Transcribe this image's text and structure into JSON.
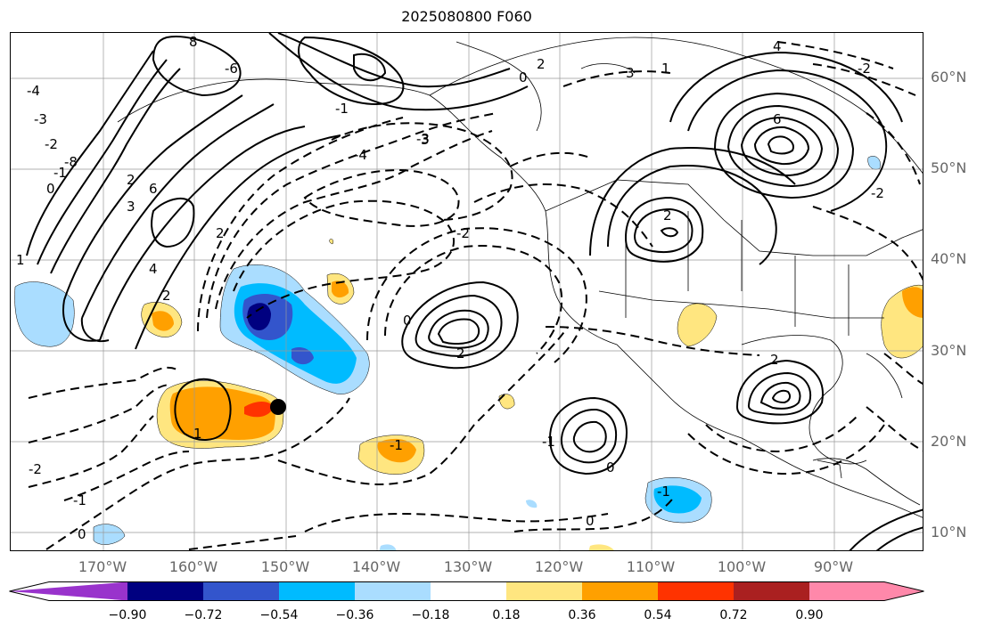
{
  "title": "2025080800 F060",
  "lat_labels": [
    "60°N",
    "50°N",
    "40°N",
    "30°N",
    "20°N",
    "10°N"
  ],
  "lon_labels": [
    "170°W",
    "160°W",
    "150°W",
    "140°W",
    "130°W",
    "120°W",
    "110°W",
    "100°W",
    "90°W"
  ],
  "colorbar": {
    "ticks": [
      "−0.90",
      "−0.72",
      "−0.54",
      "−0.36",
      "−0.18",
      "0.18",
      "0.36",
      "0.54",
      "0.72",
      "0.90"
    ],
    "colors": [
      "#9933cc",
      "#000080",
      "#3355cc",
      "#00bbff",
      "#aaddff",
      "#ffffff",
      "#ffe680",
      "#ffa000",
      "#ff3300",
      "#aa2020",
      "#ff88aa"
    ]
  },
  "contour_labels": [
    "-4",
    "-3",
    "-2",
    "-1",
    "0",
    "1",
    "2",
    "3",
    "4",
    "6",
    "8",
    "-8",
    "-6",
    "2",
    "-2",
    "-1",
    "0",
    "1",
    "2",
    "3",
    "-4",
    "-3",
    "-2",
    "-1",
    "0",
    "1",
    "2",
    "3",
    "4",
    "6",
    "-1",
    "-2",
    "0",
    "-1",
    "0",
    "2",
    "2",
    "-2",
    "0",
    "-1",
    "2"
  ]
}
